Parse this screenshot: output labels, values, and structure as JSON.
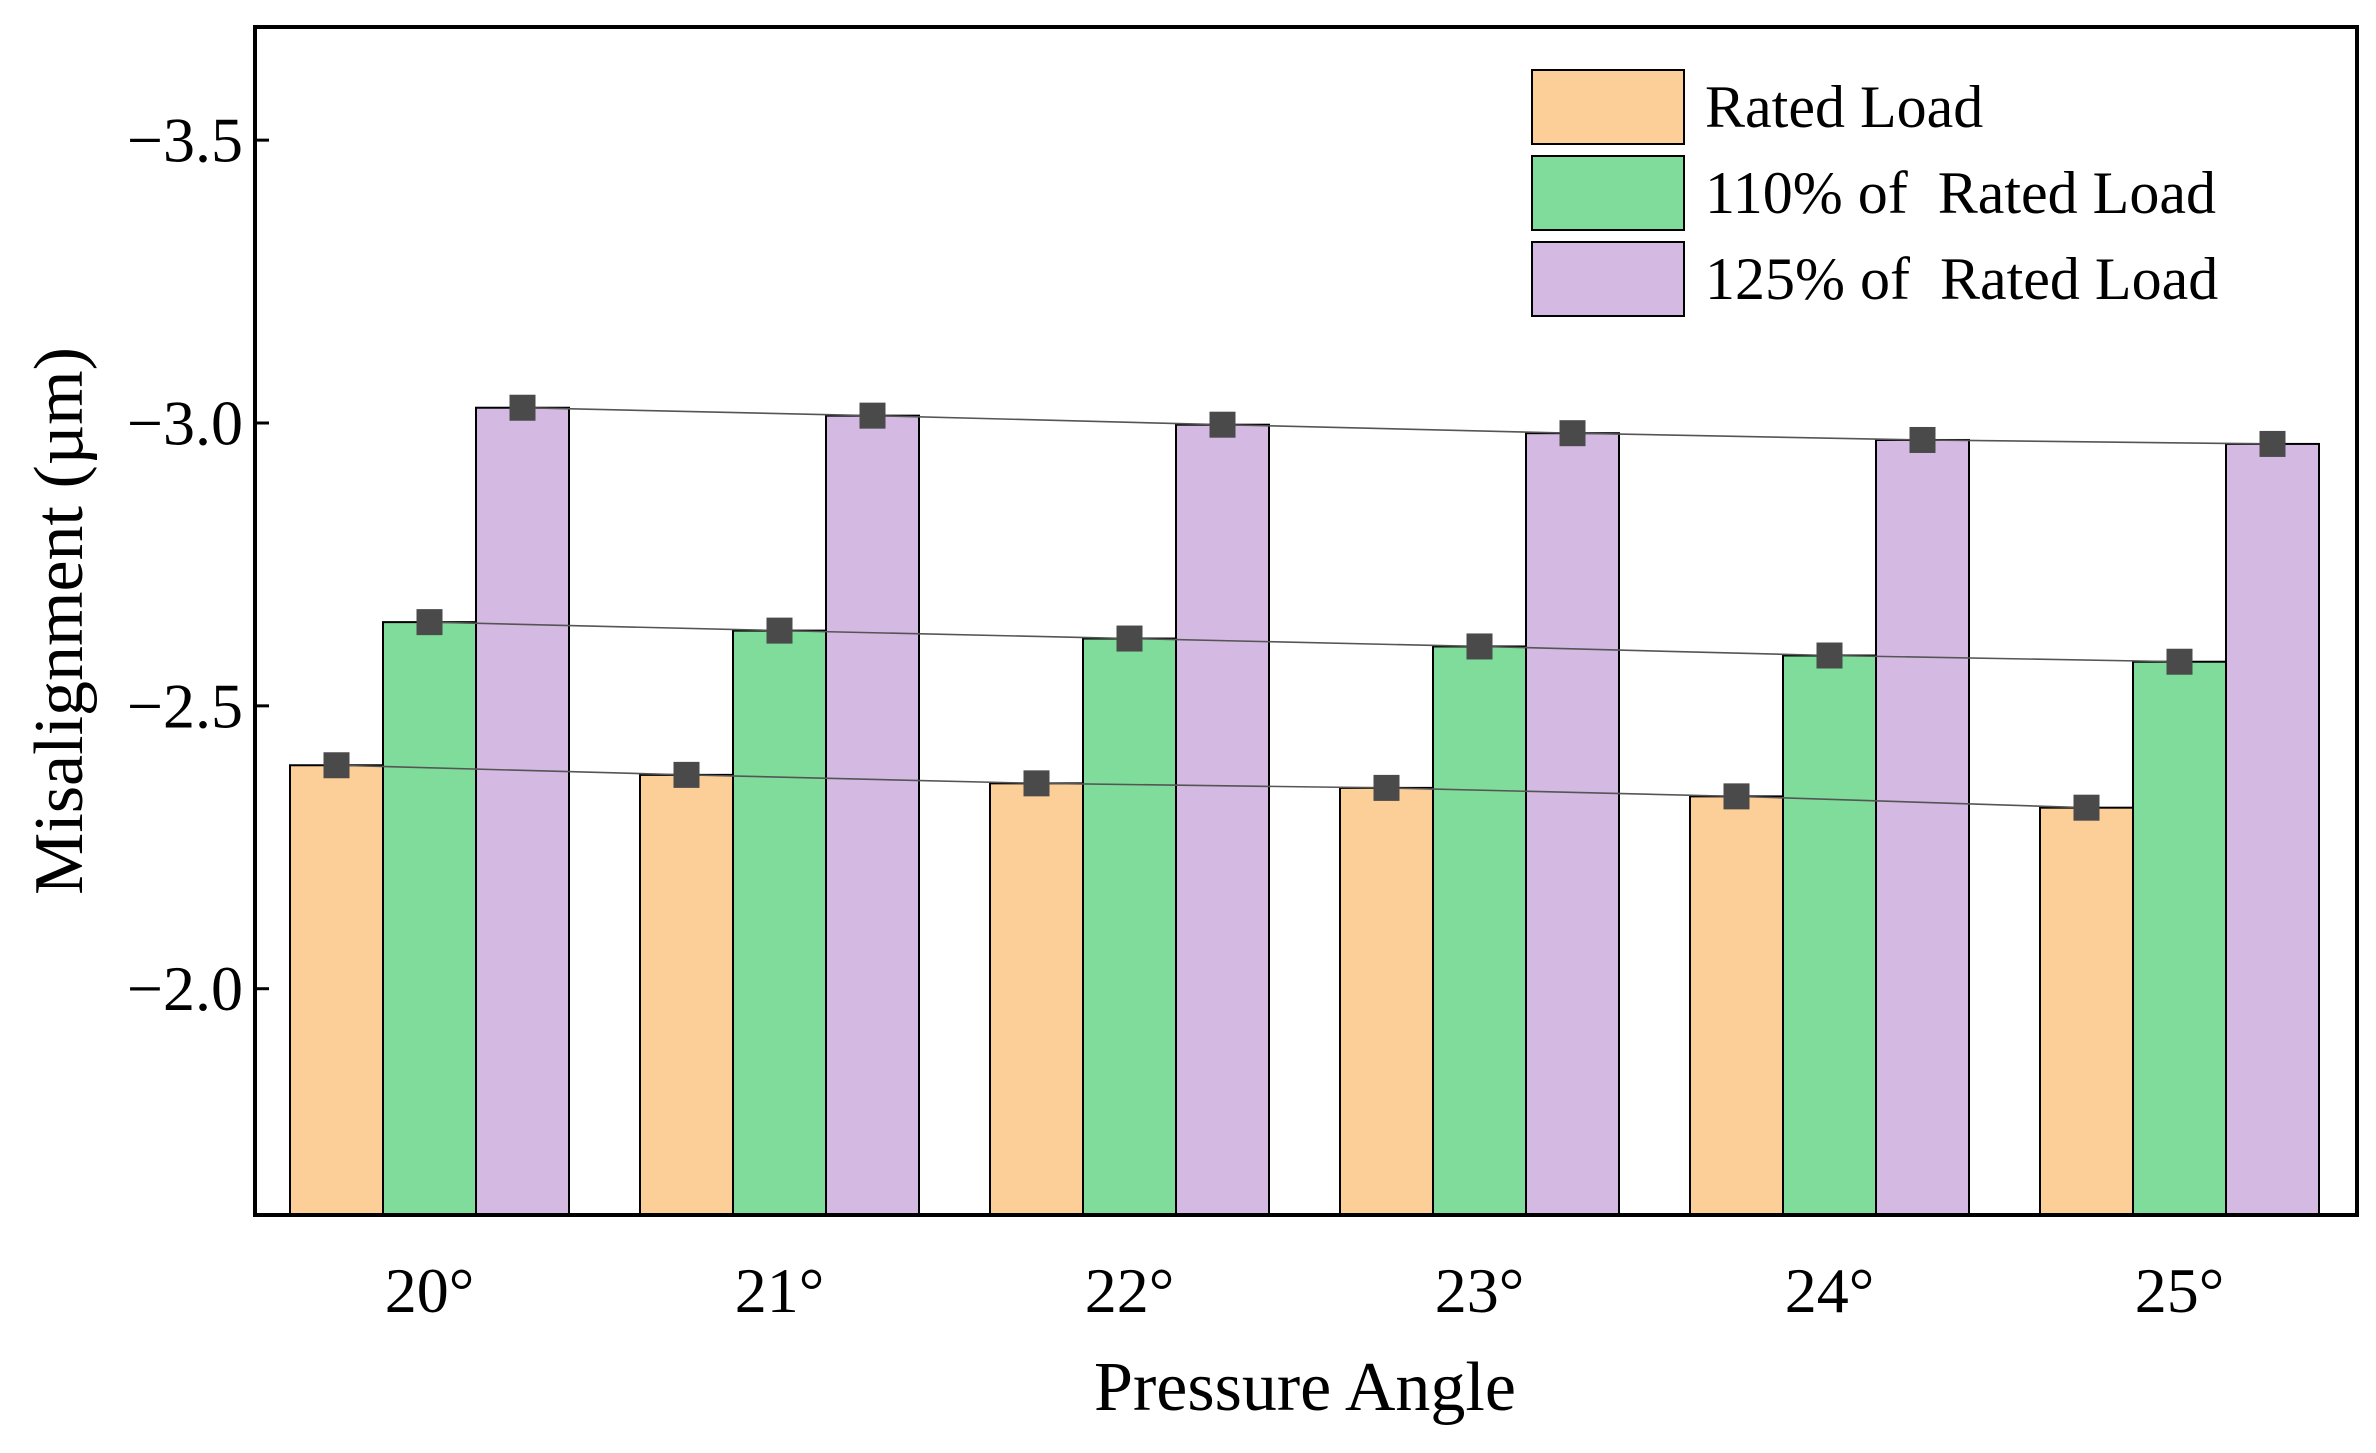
{
  "chart_data": {
    "type": "bar",
    "title": "",
    "xlabel": "Pressure Angle",
    "ylabel": "Misalignment (µm)",
    "categories": [
      "20°",
      "21°",
      "22°",
      "23°",
      "24°",
      "25°"
    ],
    "ylim": [
      -1.6,
      -3.7
    ],
    "yticks": [
      -3.5,
      -3.0,
      -2.5,
      -2.0
    ],
    "ytick_labels": [
      "−3.5",
      "−3.0",
      "−2.5",
      "−2.0"
    ],
    "series": [
      {
        "name": "Rated Load",
        "color": "#FDCF98",
        "values": [
          -2.395,
          -2.378,
          -2.363,
          -2.355,
          -2.34,
          -2.32
        ]
      },
      {
        "name": "110% of  Rated Load",
        "color": "#7FDC9A",
        "values": [
          -2.648,
          -2.633,
          -2.619,
          -2.605,
          -2.589,
          -2.578
        ]
      },
      {
        "name": "125% of  Rated Load",
        "color": "#D4B9E2",
        "values": [
          -3.027,
          -3.013,
          -2.997,
          -2.982,
          -2.97,
          -2.963
        ]
      }
    ],
    "markers": {
      "shape": "square",
      "color": "#4A4A4A"
    },
    "trend_lines": true,
    "legend": "top-right",
    "grid": false
  }
}
